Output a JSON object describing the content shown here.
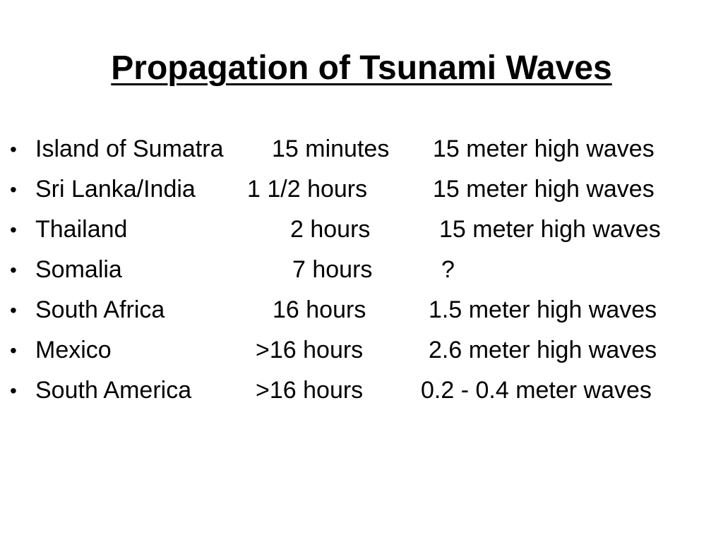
{
  "slide": {
    "title": "Propagation of Tsunami Waves",
    "rows": [
      {
        "place": "Island of Sumatra",
        "time": "15 minutes",
        "wave": "15 meter high waves"
      },
      {
        "place": "Sri Lanka/India",
        "time": "1 1/2 hours",
        "wave": "15 meter high waves"
      },
      {
        "place": "Thailand",
        "time": "2 hours",
        "wave": "15 meter high waves"
      },
      {
        "place": "Somalia",
        "time": "7 hours",
        "wave": "?"
      },
      {
        "place": "South Africa",
        "time": "16 hours",
        "wave": "1.5 meter high waves"
      },
      {
        "place": "Mexico",
        "time": ">16 hours",
        "wave": "2.6 meter high waves"
      },
      {
        "place": "South America",
        "time": ">16 hours",
        "wave": "0.2 - 0.4 meter waves"
      }
    ]
  }
}
